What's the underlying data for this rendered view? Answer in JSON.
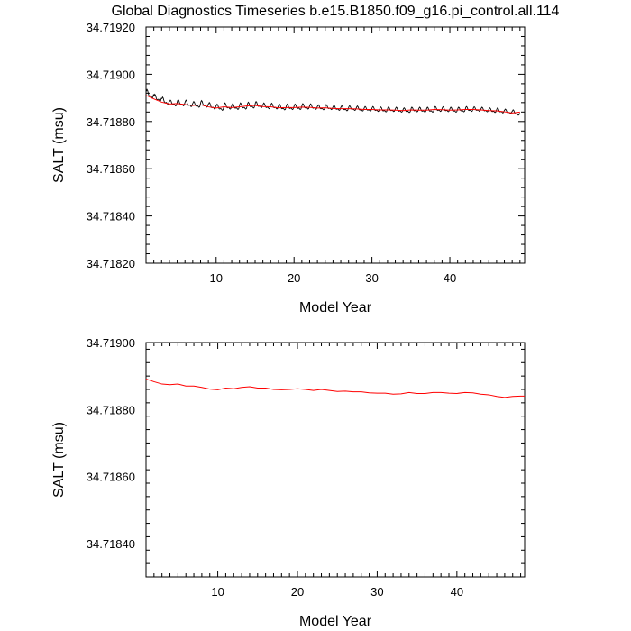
{
  "title": "Global Diagnostics Timeseries b.e15.B1850.f09_g16.pi_control.all.114",
  "chart_data": [
    {
      "type": "line",
      "xlabel": "Model Year",
      "ylabel": "SALT (msu)",
      "xlim": [
        1,
        49.6
      ],
      "ylim": [
        34.7182,
        34.7192
      ],
      "xticks": [
        10,
        20,
        30,
        40
      ],
      "yticks": [
        34.7182,
        34.7184,
        34.7186,
        34.7188,
        34.719,
        34.7192
      ],
      "ytick_labels": [
        "34.71820",
        "34.71840",
        "34.71860",
        "34.71880",
        "34.71900",
        "34.71920"
      ],
      "grid": false,
      "series": [
        {
          "kind": "monthly",
          "color": "#000000",
          "annual_amplitude": [
            2.2e-05,
            1.8e-05,
            1.9e-05,
            1.5e-05,
            1.6e-05,
            1.7e-05,
            1.5e-05,
            1.7e-05,
            1.7e-05,
            1.6e-05,
            1.6e-05,
            1.5e-05,
            1.6e-05,
            1.5e-05,
            1.6e-05,
            1.5e-05,
            1.5e-05,
            1.5e-05,
            1.4e-05,
            1.4e-05,
            1.4e-05,
            1.4e-05,
            1.3e-05,
            1.3e-05,
            1.3e-05,
            1.3e-05,
            1.2e-05,
            1.3e-05,
            1.2e-05,
            1.3e-05,
            1.3e-05,
            1.2e-05,
            1.3e-05,
            1.2e-05,
            1.2e-05,
            1.3e-05,
            1.3e-05,
            1.3e-05,
            1.3e-05,
            1.3e-05,
            1.2e-05,
            1.3e-05,
            1.2e-05,
            1.2e-05,
            1.2e-05,
            1.3e-05,
            1.2e-05,
            1.4e-05
          ],
          "annual_offset": [
            5e-06,
            4e-06,
            5e-06,
            4e-06,
            3e-06,
            4e-06,
            4e-06,
            3e-06,
            4e-06,
            3e-06,
            3e-06,
            4e-06,
            3e-06,
            3e-06,
            3e-06,
            3e-06,
            3e-06,
            3e-06,
            3e-06,
            3e-06,
            3e-06,
            3e-06,
            3e-06,
            3e-06,
            3e-06,
            2e-06,
            3e-06,
            2e-06,
            3e-06,
            2e-06,
            2e-06,
            3e-06,
            2e-06,
            2e-06,
            2e-06,
            2e-06,
            2e-06,
            2e-06,
            2e-06,
            2e-06,
            2e-06,
            2e-06,
            2e-06,
            2e-06,
            2e-06,
            2e-06,
            2e-06,
            2e-06
          ]
        },
        {
          "kind": "annual",
          "color": "#ff0000",
          "x": [
            1,
            2,
            3,
            4,
            5,
            6,
            7,
            8,
            9,
            10,
            11,
            12,
            13,
            14,
            15,
            16,
            17,
            18,
            19,
            20,
            21,
            22,
            23,
            24,
            25,
            26,
            27,
            28,
            29,
            30,
            31,
            32,
            33,
            34,
            35,
            36,
            37,
            38,
            39,
            40,
            41,
            42,
            43,
            44,
            45,
            46,
            47,
            48,
            49
          ],
          "y": [
            34.718911,
            34.718896,
            34.718882,
            34.718874,
            34.718876,
            34.718872,
            34.718868,
            34.718871,
            34.718862,
            34.718857,
            34.718862,
            34.718859,
            34.718862,
            34.718866,
            34.718868,
            34.718863,
            34.718862,
            34.718858,
            34.718859,
            34.718859,
            34.718861,
            34.71886,
            34.718857,
            34.718858,
            34.718855,
            34.718854,
            34.718854,
            34.718853,
            34.718851,
            34.718851,
            34.718849,
            34.718849,
            34.718848,
            34.718846,
            34.718849,
            34.718848,
            34.718848,
            34.718851,
            34.71885,
            34.718848,
            34.718849,
            34.718851,
            34.718851,
            34.718849,
            34.718846,
            34.718845,
            34.718841,
            34.718836,
            34.71884
          ]
        }
      ]
    },
    {
      "type": "line",
      "xlabel": "Model Year",
      "ylabel": "SALT (msu)",
      "xlim": [
        1,
        48.5
      ],
      "ylim": [
        34.7183,
        34.719
      ],
      "xticks": [
        10,
        20,
        30,
        40
      ],
      "yticks": [
        34.7184,
        34.7186,
        34.7188,
        34.719
      ],
      "ytick_labels": [
        "34.71840",
        "34.71860",
        "34.71880",
        "34.71900"
      ],
      "grid": false,
      "series": [
        {
          "kind": "annual",
          "color": "#ff0000",
          "x": [
            1,
            2,
            3,
            4,
            5,
            6,
            7,
            8,
            9,
            10,
            11,
            12,
            13,
            14,
            15,
            16,
            17,
            18,
            19,
            20,
            21,
            22,
            23,
            24,
            25,
            26,
            27,
            28,
            29,
            30,
            31,
            32,
            33,
            34,
            35,
            36,
            37,
            38,
            39,
            40,
            41,
            42,
            43,
            44,
            45,
            46,
            47,
            48,
            48.5
          ],
          "y": [
            34.718891,
            34.718883,
            34.718876,
            34.718874,
            34.718876,
            34.71887,
            34.71887,
            34.718866,
            34.718861,
            34.718859,
            34.718864,
            34.718862,
            34.718866,
            34.718868,
            34.718864,
            34.718864,
            34.71886,
            34.718859,
            34.71886,
            34.718862,
            34.71886,
            34.718857,
            34.71886,
            34.718857,
            34.718854,
            34.718855,
            34.718853,
            34.718853,
            34.71885,
            34.718849,
            34.718849,
            34.718846,
            34.718847,
            34.718851,
            34.718848,
            34.718848,
            34.718851,
            34.718851,
            34.718849,
            34.718848,
            34.718851,
            34.71885,
            34.718846,
            34.718844,
            34.718839,
            34.718836,
            34.718839,
            34.71884,
            34.71884
          ]
        }
      ]
    }
  ]
}
